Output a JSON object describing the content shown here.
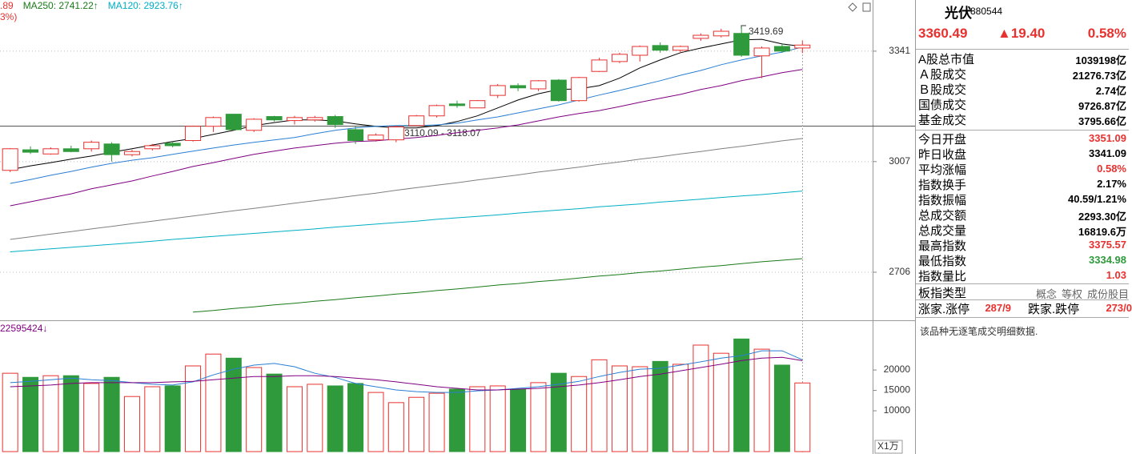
{
  "chart_data": [
    {
      "type": "candlestick",
      "yscale": "log",
      "ylim": [
        2594.6,
        3508
      ],
      "yticks": [
        2706,
        3007,
        3341
      ],
      "grid": true,
      "up_color": "#e8312f",
      "down_color": "#2f9a3b",
      "legend": [
        [
          {
            "text": ".89",
            "color": "#e8312f"
          },
          {
            "text": "MA250: 2741.22↑",
            "color": "#1a7a1a"
          },
          {
            "text": "MA120: 2923.76↑",
            "color": "#00aec4"
          }
        ],
        [
          {
            "text": "3%)",
            "color": "#e8312f"
          }
        ]
      ],
      "annotations": [
        "3419.69",
        "3110.09 - 3118.07"
      ],
      "open": [
        2982,
        3041,
        3029,
        3044,
        3044,
        3058,
        3027,
        3044,
        3060,
        3068,
        3110,
        3146,
        3098,
        3139,
        3127,
        3129,
        3139,
        3100,
        3070,
        3070,
        3112,
        3141,
        3177,
        3165,
        3203,
        3233,
        3223,
        3250,
        3187,
        3277,
        3308,
        3328,
        3359,
        3344,
        3382,
        3390,
        3398,
        3326,
        3356,
        3351.09
      ],
      "high": [
        3046,
        3051,
        3048,
        3053,
        3068,
        3063,
        3041,
        3058,
        3065,
        3112,
        3139,
        3146,
        3134,
        3141,
        3141,
        3141,
        3144,
        3110,
        3089,
        3112,
        3144,
        3175,
        3187,
        3189,
        3238,
        3240,
        3250,
        3253,
        3260,
        3320,
        3336,
        3359,
        3369,
        3359,
        3398,
        3413,
        3419.69,
        3356,
        3364,
        3375.57
      ],
      "low": [
        2977,
        3029,
        3027,
        3034,
        3036,
        3007,
        3022,
        3039,
        3048,
        3065,
        3093,
        3098,
        3093,
        3124,
        3115,
        3124,
        3105,
        3058,
        3065,
        3063,
        3110,
        3136,
        3165,
        3165,
        3195,
        3216,
        3216,
        3184,
        3184,
        3275,
        3303,
        3308,
        3336,
        3336,
        3374,
        3385,
        3323,
        3256,
        3336,
        3334.98
      ],
      "close": [
        3044,
        3034,
        3044,
        3036,
        3063,
        3027,
        3036,
        3053,
        3053,
        3110,
        3136,
        3100,
        3131,
        3129,
        3136,
        3136,
        3115,
        3068,
        3084,
        3108,
        3141,
        3172,
        3172,
        3187,
        3233,
        3226,
        3248,
        3187,
        3258,
        3313,
        3331,
        3356,
        3344,
        3356,
        3392,
        3405,
        3328,
        3351,
        3341.09,
        3360.49
      ],
      "lines": [
        {
          "color": "#000000",
          "values": [
            2984,
            2995,
            3004,
            3014,
            3023,
            3034,
            3044,
            3055,
            3065,
            3074,
            3086,
            3098,
            3112,
            3121,
            3129,
            3129,
            3126,
            3117,
            3110,
            3105,
            3105,
            3112,
            3124,
            3141,
            3165,
            3189,
            3208,
            3221,
            3223,
            3233,
            3256,
            3288,
            3313,
            3336,
            3351,
            3364,
            3377,
            3379,
            3364,
            3356
          ]
        },
        {
          "color": "#2a7fd4",
          "values": [
            2945,
            2956,
            2968,
            2979,
            2991,
            3002,
            3011,
            3018,
            3028,
            3037,
            3046,
            3055,
            3063,
            3070,
            3077,
            3088,
            3098,
            3105,
            3110,
            3112,
            3112,
            3114,
            3119,
            3129,
            3138,
            3150,
            3162,
            3174,
            3189,
            3204,
            3218,
            3233,
            3248,
            3265,
            3280,
            3298,
            3313,
            3326,
            3338,
            3354
          ]
        },
        {
          "color": "#800080",
          "values": [
            2883,
            2894,
            2905,
            2916,
            2930,
            2941,
            2952,
            2966,
            2979,
            2993,
            3004,
            3016,
            3028,
            3037,
            3046,
            3053,
            3060,
            3065,
            3067,
            3072,
            3077,
            3083,
            3091,
            3098,
            3105,
            3114,
            3126,
            3138,
            3148,
            3157,
            3169,
            3182,
            3194,
            3206,
            3221,
            3233,
            3248,
            3260,
            3273,
            3283
          ]
        },
        {
          "color": "#808080",
          "values": [
            2792,
            2799,
            2806,
            2813,
            2820,
            2827,
            2834,
            2841,
            2848,
            2855,
            2862,
            2869,
            2876,
            2883,
            2890,
            2897,
            2904,
            2911,
            2918,
            2926,
            2933,
            2940,
            2947,
            2955,
            2962,
            2969,
            2977,
            2984,
            2991,
            2999,
            3006,
            3014,
            3021,
            3029,
            3036,
            3044,
            3051,
            3059,
            3067,
            3074
          ]
        },
        {
          "color": "#00aec4",
          "values": [
            2759,
            2763,
            2767,
            2771,
            2775,
            2779,
            2783,
            2787,
            2792,
            2796,
            2800,
            2804,
            2808,
            2812,
            2816,
            2820,
            2825,
            2829,
            2833,
            2837,
            2841,
            2846,
            2850,
            2854,
            2858,
            2863,
            2867,
            2871,
            2875,
            2880,
            2884,
            2888,
            2893,
            2897,
            2901,
            2906,
            2910,
            2914,
            2919,
            2923.76
          ]
        },
        {
          "color": "#1a7a1a",
          "values": [
            null,
            null,
            null,
            null,
            null,
            null,
            null,
            null,
            null,
            2605,
            2609,
            2614,
            2618,
            2623,
            2627,
            2632,
            2636,
            2641,
            2645,
            2650,
            2654,
            2659,
            2663,
            2668,
            2673,
            2677,
            2682,
            2686,
            2691,
            2696,
            2700,
            2705,
            2709,
            2714,
            2719,
            2723,
            2728,
            2733,
            2737,
            2741.22
          ]
        }
      ]
    },
    {
      "type": "bar",
      "title": "22595424↓",
      "unit": "X1万",
      "ylim": [
        0,
        31200
      ],
      "yticks": [
        10000,
        15000,
        20000
      ],
      "values": [
        19200,
        18200,
        18600,
        18600,
        16700,
        18200,
        13500,
        15900,
        16100,
        21000,
        23900,
        22900,
        20600,
        19000,
        15900,
        16500,
        16100,
        16700,
        14500,
        12000,
        13300,
        14300,
        15300,
        15900,
        16100,
        15300,
        16900,
        19200,
        18400,
        22500,
        21000,
        20800,
        22100,
        21400,
        26100,
        24100,
        27600,
        25100,
        21200,
        16819.6
      ],
      "lines": [
        {
          "color": "#2a7fd4",
          "values": [
            16900,
            17200,
            17600,
            18000,
            17600,
            17400,
            16900,
            16500,
            16300,
            17100,
            18800,
            20200,
            21200,
            21600,
            20800,
            19200,
            18200,
            16700,
            15900,
            15100,
            14700,
            14500,
            14500,
            14900,
            15100,
            15500,
            15900,
            16500,
            17200,
            18400,
            19400,
            20200,
            20400,
            21200,
            22000,
            22900,
            23500,
            24700,
            24700,
            22500
          ]
        },
        {
          "color": "#800080",
          "values": [
            15900,
            16100,
            16300,
            16700,
            16900,
            16900,
            16900,
            16900,
            17100,
            17200,
            17600,
            18000,
            18400,
            18400,
            18600,
            18600,
            18400,
            18000,
            17600,
            17100,
            16500,
            15900,
            15500,
            15100,
            15100,
            15300,
            15500,
            15900,
            16300,
            16900,
            17600,
            18400,
            19000,
            19800,
            20600,
            21400,
            22300,
            22900,
            23100,
            22300
          ]
        }
      ]
    }
  ],
  "panel": {
    "name": "光伏",
    "code": "880544",
    "price": "3360.49",
    "change": "▲19.40",
    "pct": "0.58%",
    "market_rows": [
      {
        "label": "A股总市值",
        "value": "1039198亿",
        "color": "#000000"
      },
      {
        "label": "Ａ股成交",
        "value": "21276.73亿",
        "color": "#000000"
      },
      {
        "label": "Ｂ股成交",
        "value": "2.74亿",
        "color": "#000000"
      },
      {
        "label": "国债成交",
        "value": "9726.87亿",
        "color": "#000000"
      },
      {
        "label": "基金成交",
        "value": "3795.66亿",
        "color": "#000000"
      }
    ],
    "index_rows": [
      {
        "label": "今日开盘",
        "value": "3351.09",
        "color": "#e8312f"
      },
      {
        "label": "昨日收盘",
        "value": "3341.09",
        "color": "#000000"
      },
      {
        "label": "平均涨幅",
        "value": "0.58%",
        "color": "#e8312f"
      },
      {
        "label": "指数换手",
        "value": "2.17%",
        "color": "#000000"
      },
      {
        "label": "指数振幅",
        "value": "40.59/1.21%",
        "color": "#000000"
      },
      {
        "label": "总成交额",
        "value": "2293.30亿",
        "color": "#000000"
      },
      {
        "label": "总成交量",
        "value": "16819.6万",
        "color": "#000000"
      },
      {
        "label": "最高指数",
        "value": "3375.57",
        "color": "#e8312f"
      },
      {
        "label": "最低指数",
        "value": "3334.98",
        "color": "#2f9a3b"
      },
      {
        "label": "指数量比",
        "value": "1.03",
        "color": "#e8312f"
      }
    ],
    "sector_label": "板指类型",
    "sector_options": [
      "概念",
      "等权",
      "成份股目"
    ],
    "breadth": [
      "涨家.涨停",
      "287/9",
      "跌家.跌停",
      "273/0"
    ],
    "note": "该品种无逐笔成交明细数据."
  }
}
